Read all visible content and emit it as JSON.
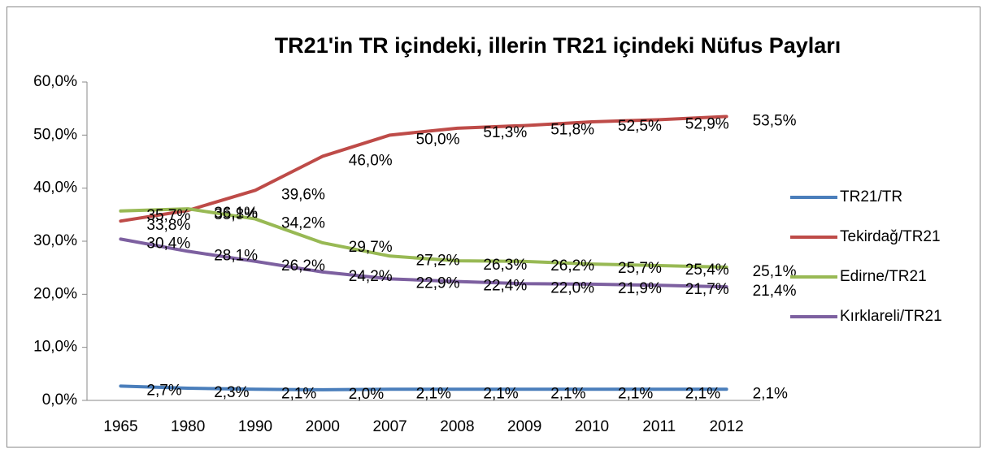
{
  "chart_data": {
    "type": "line",
    "title": "TR21'in TR içindeki, illerin TR21 içindeki Nüfus Payları",
    "categories": [
      "1965",
      "1980",
      "1990",
      "2000",
      "2007",
      "2008",
      "2009",
      "2010",
      "2011",
      "2012"
    ],
    "series": [
      {
        "name": "TR21/TR",
        "color": "#4a7ebb",
        "values": [
          2.7,
          2.3,
          2.1,
          2.0,
          2.1,
          2.1,
          2.1,
          2.1,
          2.1,
          2.1
        ],
        "value_labels": [
          "2,7%",
          "2,3%",
          "2,1%",
          "2,0%",
          "2,1%",
          "2,1%",
          "2,1%",
          "2,1%",
          "2,1%",
          "2,1%"
        ]
      },
      {
        "name": "Tekirdağ/TR21",
        "color": "#be4b48",
        "values": [
          33.8,
          35.8,
          39.6,
          46.0,
          50.0,
          51.3,
          51.8,
          52.5,
          52.9,
          53.5
        ],
        "value_labels": [
          "33,8%",
          "35,8%",
          "39,6%",
          "46,0%",
          "50,0%",
          "51,3%",
          "51,8%",
          "52,5%",
          "52,9%",
          "53,5%"
        ]
      },
      {
        "name": "Edirne/TR21",
        "color": "#98b954",
        "values": [
          35.7,
          36.1,
          34.2,
          29.7,
          27.2,
          26.3,
          26.2,
          25.7,
          25.4,
          25.1
        ],
        "value_labels": [
          "35,7%",
          "36,1%",
          "34,2%",
          "29,7%",
          "27,2%",
          "26,3%",
          "26,2%",
          "25,7%",
          "25,4%",
          "25,1%"
        ]
      },
      {
        "name": "Kırklareli/TR21",
        "color": "#7d60a0",
        "values": [
          30.4,
          28.1,
          26.2,
          24.2,
          22.9,
          22.4,
          22.0,
          21.9,
          21.7,
          21.4
        ],
        "value_labels": [
          "30,4%",
          "28,1%",
          "26,2%",
          "24,2%",
          "22,9%",
          "22,4%",
          "22,0%",
          "21,9%",
          "21,7%",
          "21,4%"
        ]
      }
    ],
    "ylim": [
      0,
      60
    ],
    "yticks": [
      {
        "value": 0,
        "label": "0,0%"
      },
      {
        "value": 10,
        "label": "10,0%"
      },
      {
        "value": 20,
        "label": "20,0%"
      },
      {
        "value": 30,
        "label": "30,0%"
      },
      {
        "value": 40,
        "label": "40,0%"
      },
      {
        "value": 50,
        "label": "50,0%"
      },
      {
        "value": 60,
        "label": "60,0%"
      }
    ],
    "legend": "right"
  }
}
